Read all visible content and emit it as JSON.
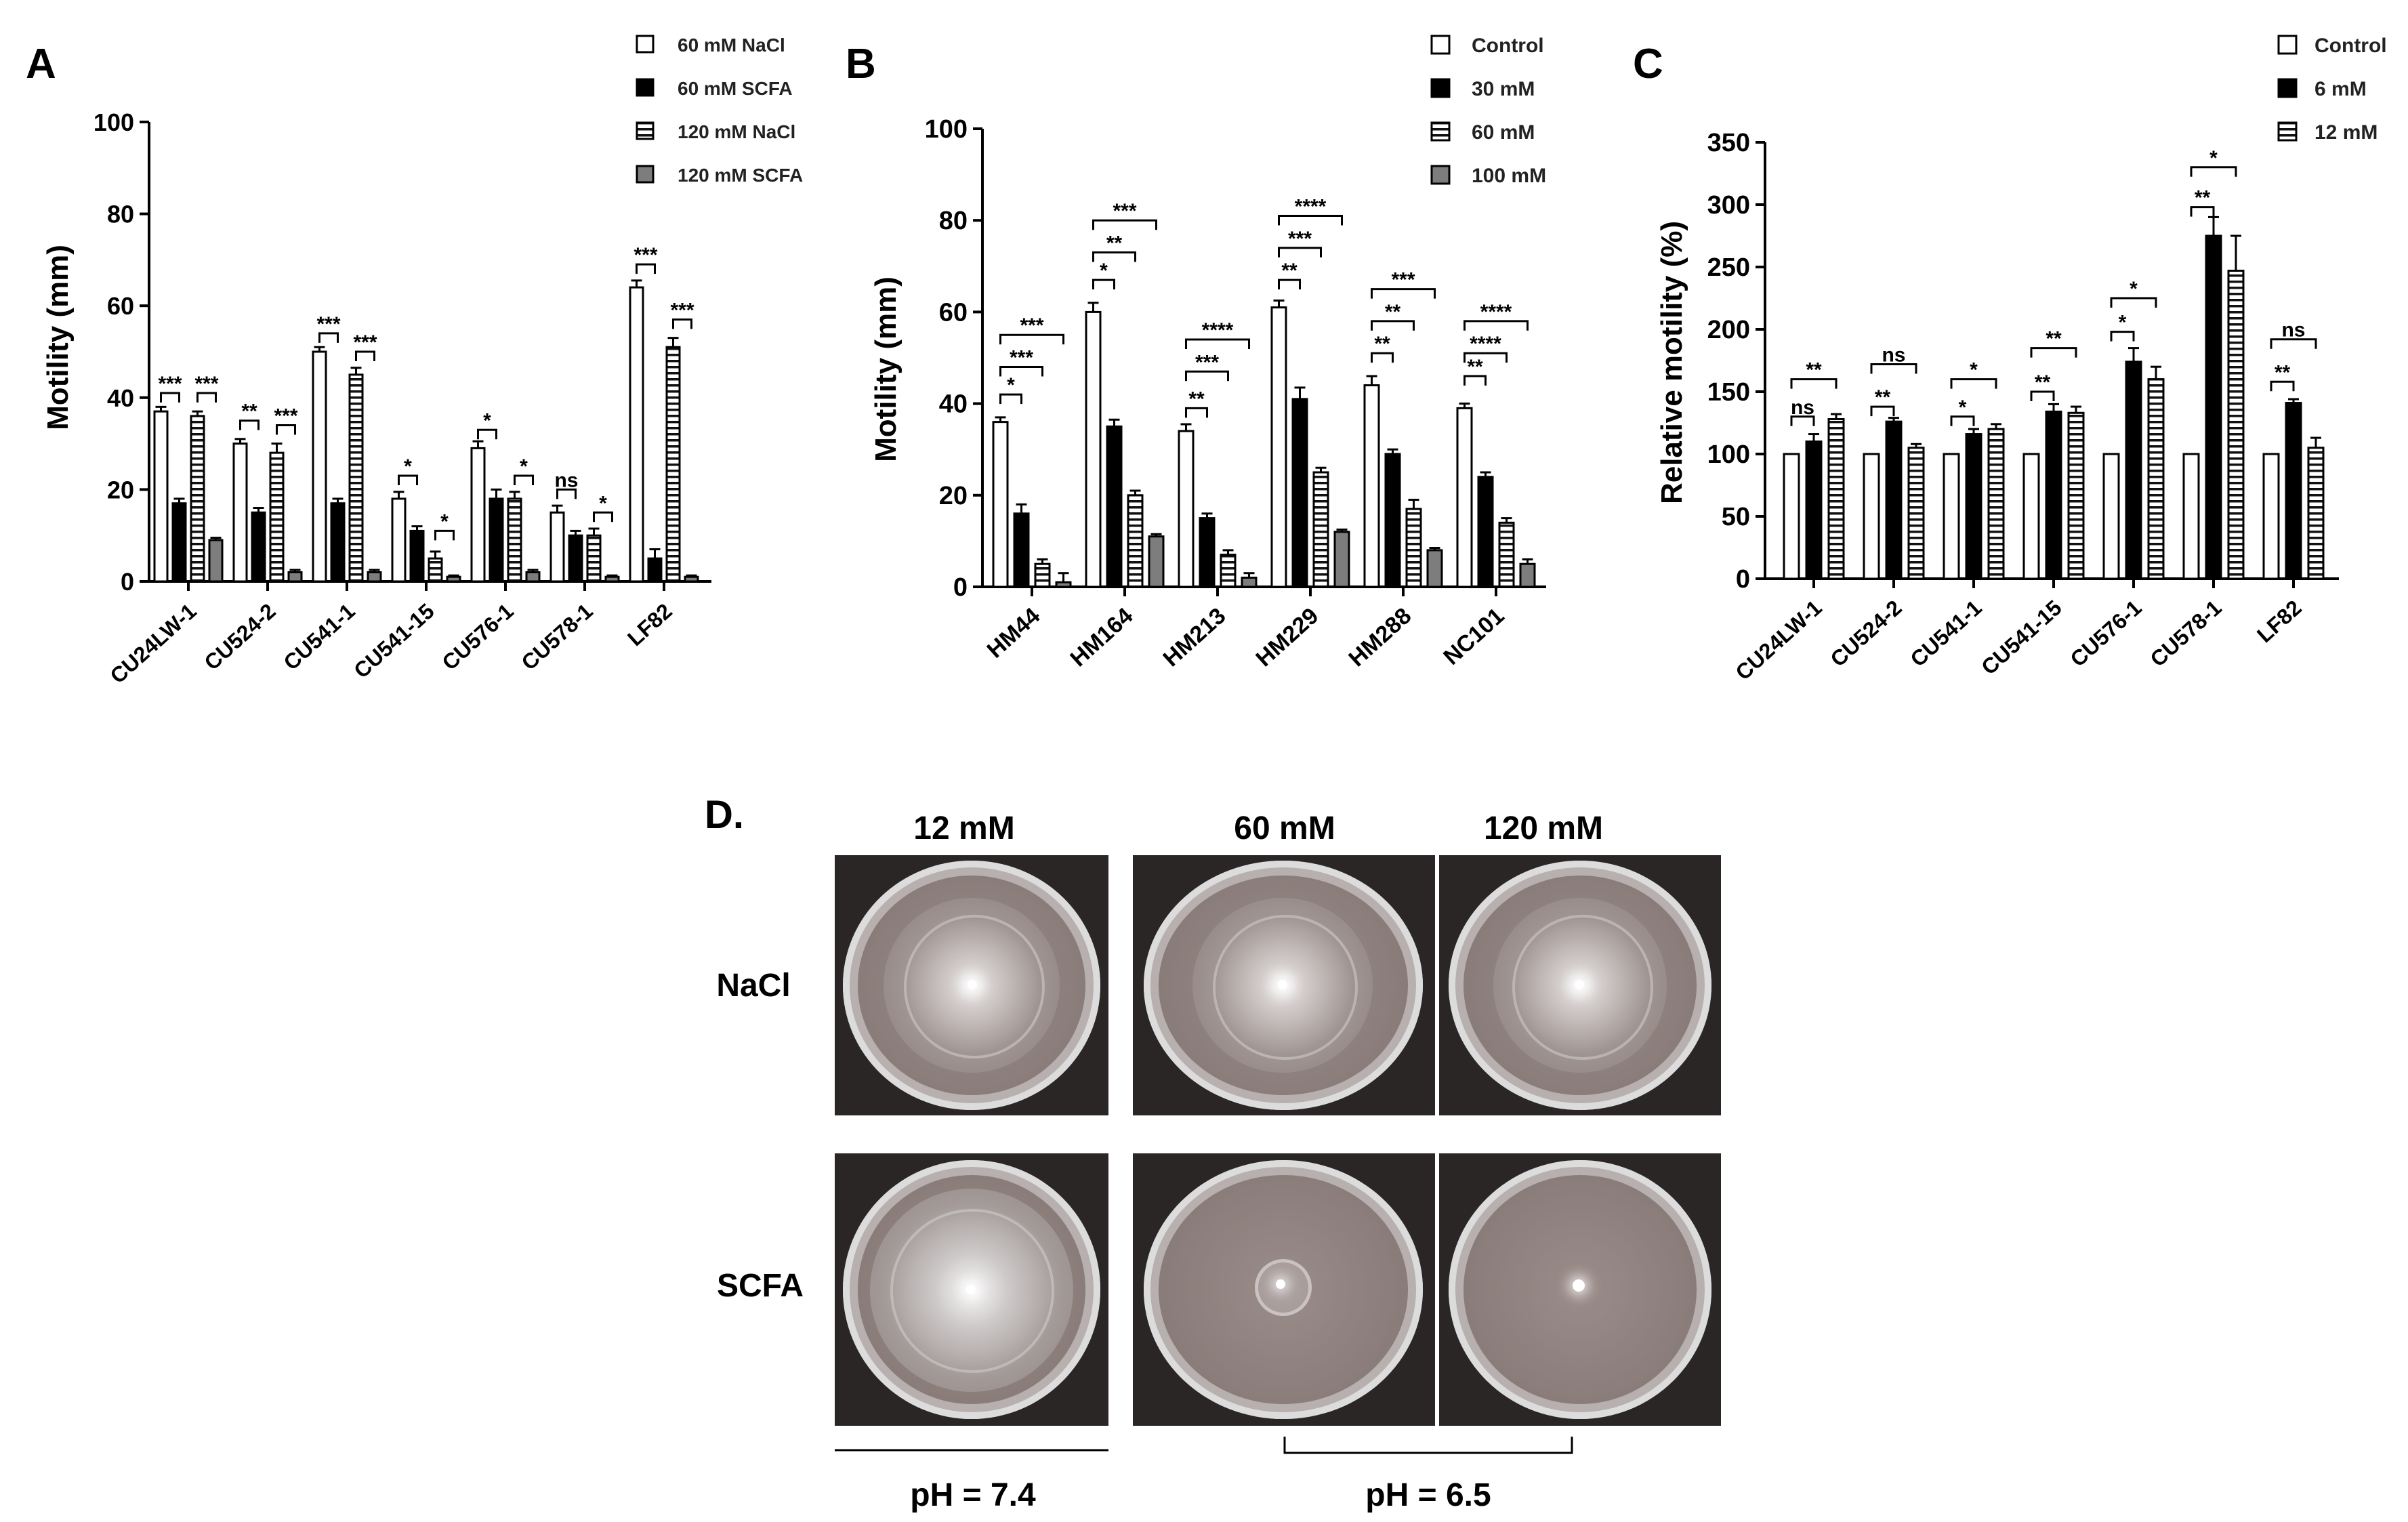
{
  "palette": {
    "axis": "#000000",
    "black": "#000000",
    "dark": "#111111",
    "gray": "#7d7d7d",
    "white": "#ffffff",
    "plate_bg": "#2a2625"
  },
  "panel_labels": {
    "a": "A",
    "b": "B",
    "c": "C",
    "d": "D."
  },
  "chart_data": [
    {
      "id": "A",
      "type": "bar",
      "ylabel": "Motility (mm)",
      "ylim": [
        0,
        100
      ],
      "yticks": [
        "0",
        "20",
        "40",
        "60",
        "80",
        "100"
      ],
      "categories": [
        "CU24LW-1",
        "CU524-2",
        "CU541-1",
        "CU541-15",
        "CU576-1",
        "CU578-1",
        "LF82"
      ],
      "series": [
        {
          "name": "60 mM NaCl",
          "pattern": "white",
          "values": [
            37,
            30,
            50,
            18,
            29,
            15,
            64
          ],
          "errors": [
            1,
            1,
            1,
            1.5,
            1.5,
            1.5,
            1.5
          ]
        },
        {
          "name": "60 mM SCFA",
          "pattern": "black",
          "values": [
            17,
            15,
            17,
            11,
            18,
            10,
            5
          ],
          "errors": [
            1,
            1,
            1,
            1,
            2,
            1,
            2
          ]
        },
        {
          "name": "120 mM NaCl",
          "pattern": "stripes",
          "values": [
            36,
            28,
            45,
            5,
            18,
            10,
            51
          ],
          "errors": [
            1,
            2,
            1.5,
            1.5,
            1.5,
            1.5,
            2
          ]
        },
        {
          "name": "120 mM SCFA",
          "pattern": "gray",
          "values": [
            9,
            2,
            2,
            1,
            2,
            1,
            1
          ],
          "errors": [
            0.5,
            0.5,
            0.5,
            0.3,
            0.5,
            0.3,
            0.3
          ]
        }
      ],
      "significance": [
        {
          "group": 0,
          "from": 0,
          "to": 1,
          "label": "***",
          "y": 41
        },
        {
          "group": 0,
          "from": 2,
          "to": 3,
          "label": "***",
          "y": 41
        },
        {
          "group": 1,
          "from": 0,
          "to": 1,
          "label": "**",
          "y": 35
        },
        {
          "group": 1,
          "from": 2,
          "to": 3,
          "label": "***",
          "y": 34
        },
        {
          "group": 2,
          "from": 0,
          "to": 1,
          "label": "***",
          "y": 54
        },
        {
          "group": 2,
          "from": 2,
          "to": 3,
          "label": "***",
          "y": 50
        },
        {
          "group": 3,
          "from": 0,
          "to": 1,
          "label": "*",
          "y": 23
        },
        {
          "group": 3,
          "from": 2,
          "to": 3,
          "label": "*",
          "y": 11
        },
        {
          "group": 4,
          "from": 0,
          "to": 1,
          "label": "*",
          "y": 33
        },
        {
          "group": 4,
          "from": 2,
          "to": 3,
          "label": "*",
          "y": 23
        },
        {
          "group": 5,
          "from": 0,
          "to": 1,
          "label": "ns",
          "y": 20
        },
        {
          "group": 5,
          "from": 2,
          "to": 3,
          "label": "*",
          "y": 15
        },
        {
          "group": 6,
          "from": 0,
          "to": 1,
          "label": "***",
          "y": 69
        },
        {
          "group": 6,
          "from": 2,
          "to": 3,
          "label": "***",
          "y": 57
        }
      ]
    },
    {
      "id": "B",
      "type": "bar",
      "ylabel": "Motility (mm)",
      "ylim": [
        0,
        100
      ],
      "yticks": [
        "0",
        "20",
        "40",
        "60",
        "80",
        "100"
      ],
      "categories": [
        "HM44",
        "HM164",
        "HM213",
        "HM229",
        "HM288",
        "NC101"
      ],
      "series": [
        {
          "name": "Control",
          "pattern": "white",
          "values": [
            36,
            60,
            34,
            61,
            44,
            39
          ],
          "errors": [
            1,
            2,
            1.5,
            1.5,
            2,
            1
          ]
        },
        {
          "name": "30 mM",
          "pattern": "black",
          "values": [
            16,
            35,
            15,
            41,
            29,
            24
          ],
          "errors": [
            2,
            1.5,
            1,
            2.5,
            1,
            1
          ]
        },
        {
          "name": "60 mM",
          "pattern": "stripes",
          "values": [
            5,
            20,
            7,
            25,
            17,
            14
          ],
          "errors": [
            1,
            1,
            1,
            1,
            2,
            1
          ]
        },
        {
          "name": "100 mM",
          "pattern": "gray",
          "values": [
            1,
            11,
            2,
            12,
            8,
            5
          ],
          "errors": [
            2,
            0.5,
            1,
            0.5,
            0.5,
            1
          ]
        }
      ],
      "significance": [
        {
          "group": 0,
          "from": 0,
          "to": 1,
          "label": "*",
          "y": 42
        },
        {
          "group": 0,
          "from": 0,
          "to": 2,
          "label": "***",
          "y": 48
        },
        {
          "group": 0,
          "from": 0,
          "to": 3,
          "label": "***",
          "y": 55
        },
        {
          "group": 1,
          "from": 0,
          "to": 1,
          "label": "*",
          "y": 67
        },
        {
          "group": 1,
          "from": 0,
          "to": 2,
          "label": "**",
          "y": 73
        },
        {
          "group": 1,
          "from": 0,
          "to": 3,
          "label": "***",
          "y": 80
        },
        {
          "group": 2,
          "from": 0,
          "to": 1,
          "label": "**",
          "y": 39
        },
        {
          "group": 2,
          "from": 0,
          "to": 2,
          "label": "***",
          "y": 47
        },
        {
          "group": 2,
          "from": 0,
          "to": 3,
          "label": "****",
          "y": 54
        },
        {
          "group": 3,
          "from": 0,
          "to": 1,
          "label": "**",
          "y": 67
        },
        {
          "group": 3,
          "from": 0,
          "to": 2,
          "label": "***",
          "y": 74
        },
        {
          "group": 3,
          "from": 0,
          "to": 3,
          "label": "****",
          "y": 81
        },
        {
          "group": 4,
          "from": 0,
          "to": 1,
          "label": "**",
          "y": 51
        },
        {
          "group": 4,
          "from": 0,
          "to": 2,
          "label": "**",
          "y": 58
        },
        {
          "group": 4,
          "from": 0,
          "to": 3,
          "label": "***",
          "y": 65
        },
        {
          "group": 5,
          "from": 0,
          "to": 1,
          "label": "**",
          "y": 46
        },
        {
          "group": 5,
          "from": 0,
          "to": 2,
          "label": "****",
          "y": 51
        },
        {
          "group": 5,
          "from": 0,
          "to": 3,
          "label": "****",
          "y": 58
        }
      ]
    },
    {
      "id": "C",
      "type": "bar",
      "ylabel": "Relative motility (%)",
      "ylim": [
        0,
        350
      ],
      "yticks": [
        "0",
        "50",
        "100",
        "150",
        "200",
        "250",
        "300",
        "350"
      ],
      "categories": [
        "CU24LW-1",
        "CU524-2",
        "CU541-1",
        "CU541-15",
        "CU576-1",
        "CU578-1",
        "LF82"
      ],
      "series": [
        {
          "name": "Control",
          "pattern": "white",
          "values": [
            100,
            100,
            100,
            100,
            100,
            100,
            100
          ],
          "errors": [
            0,
            0,
            0,
            0,
            0,
            0,
            0
          ]
        },
        {
          "name": "6 mM",
          "pattern": "black",
          "values": [
            110,
            126,
            116,
            134,
            174,
            275,
            141
          ],
          "errors": [
            6,
            3,
            4,
            6,
            11,
            15,
            3
          ]
        },
        {
          "name": "12 mM",
          "pattern": "stripes",
          "values": [
            128,
            105,
            120,
            133,
            160,
            247,
            105
          ],
          "errors": [
            4,
            3,
            4,
            5,
            10,
            28,
            8
          ]
        }
      ],
      "significance": [
        {
          "group": 0,
          "from": 0,
          "to": 1,
          "label": "ns",
          "y": 130
        },
        {
          "group": 0,
          "from": 0,
          "to": 2,
          "label": "**",
          "y": 160
        },
        {
          "group": 1,
          "from": 0,
          "to": 1,
          "label": "**",
          "y": 138
        },
        {
          "group": 1,
          "from": 0,
          "to": 2,
          "label": "ns",
          "y": 172
        },
        {
          "group": 2,
          "from": 0,
          "to": 1,
          "label": "*",
          "y": 130
        },
        {
          "group": 2,
          "from": 0,
          "to": 2,
          "label": "*",
          "y": 160
        },
        {
          "group": 3,
          "from": 0,
          "to": 1,
          "label": "**",
          "y": 150
        },
        {
          "group": 3,
          "from": 0,
          "to": 2,
          "label": "**",
          "y": 185
        },
        {
          "group": 4,
          "from": 0,
          "to": 1,
          "label": "*",
          "y": 198
        },
        {
          "group": 4,
          "from": 0,
          "to": 2,
          "label": "*",
          "y": 225
        },
        {
          "group": 5,
          "from": 0,
          "to": 1,
          "label": "**",
          "y": 298
        },
        {
          "group": 5,
          "from": 0,
          "to": 2,
          "label": "*",
          "y": 330
        },
        {
          "group": 6,
          "from": 0,
          "to": 1,
          "label": "**",
          "y": 158
        },
        {
          "group": 6,
          "from": 0,
          "to": 2,
          "label": "ns",
          "y": 192
        }
      ]
    }
  ],
  "panel_d": {
    "columns": [
      "12 mM",
      "60 mM",
      "120 mM"
    ],
    "rows": [
      "NaCl",
      "SCFA"
    ],
    "ph_left": "pH = 7.4",
    "ph_right": "pH = 6.5"
  }
}
